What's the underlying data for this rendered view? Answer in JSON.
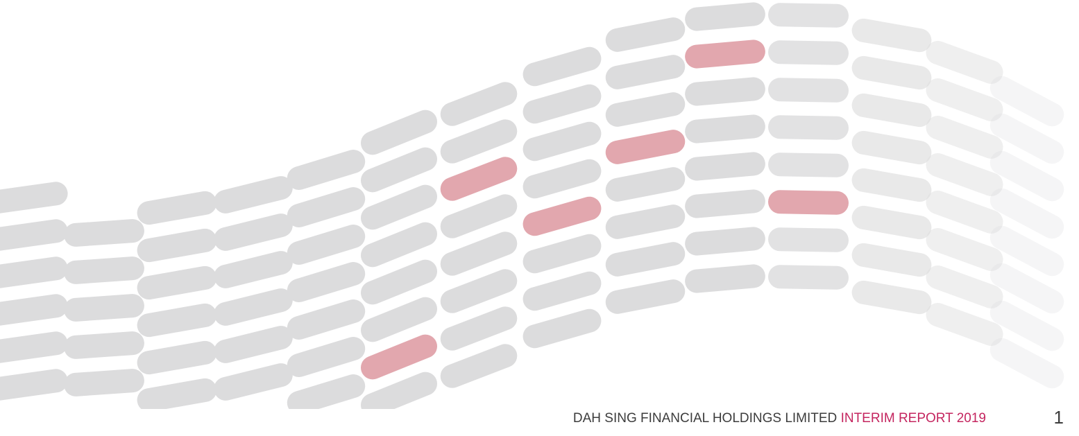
{
  "footer": {
    "company": "DAH SING FINANCIAL HOLDINGS LIMITED",
    "report": "INTERIM REPORT 2019",
    "page_number": 1
  }
}
